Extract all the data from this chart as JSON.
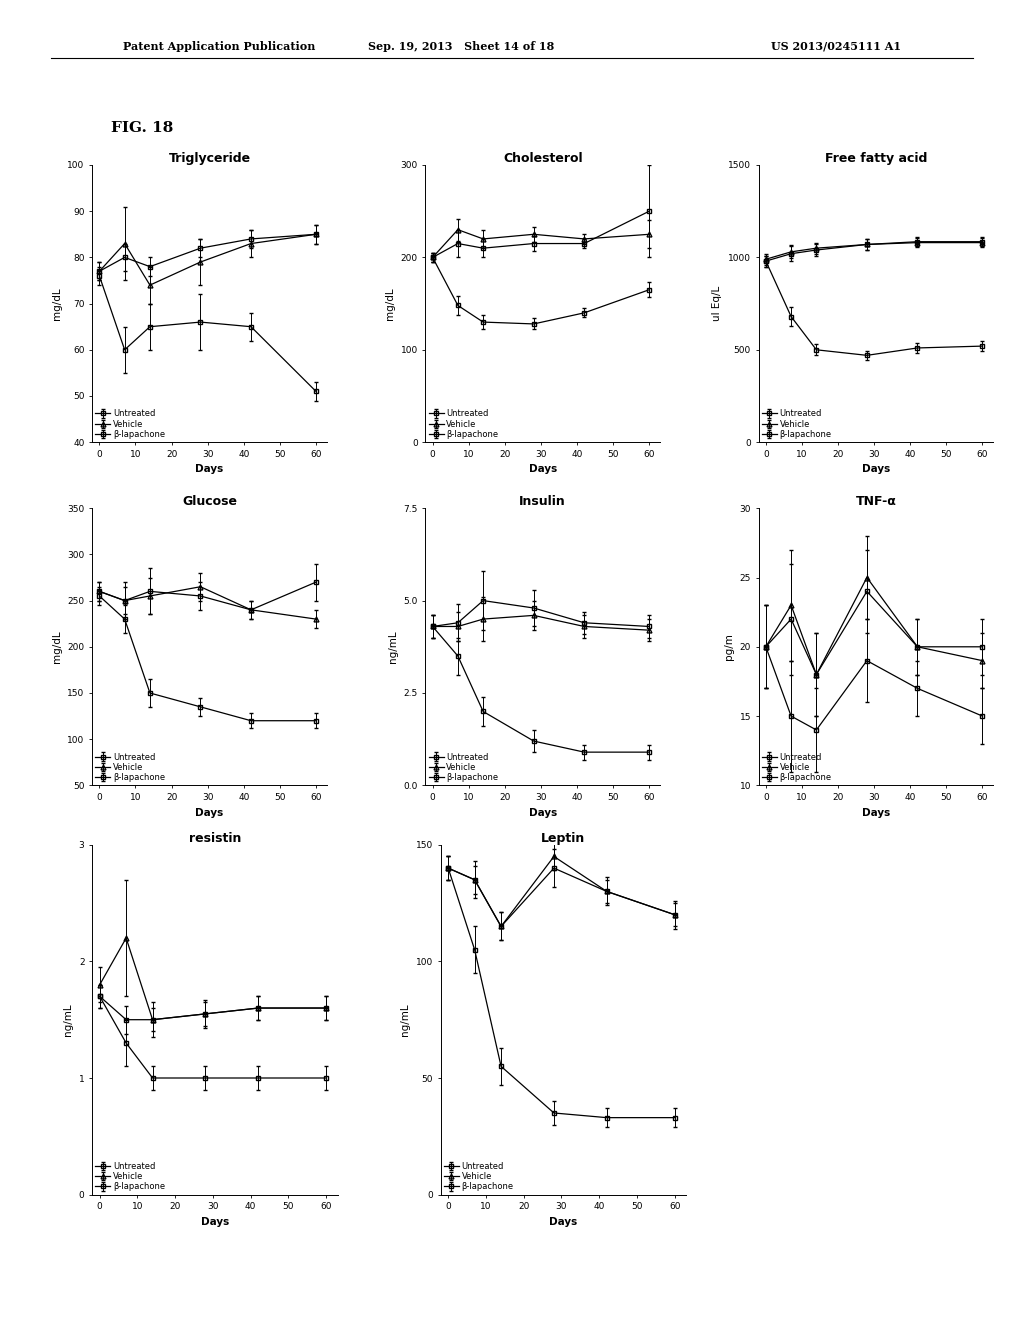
{
  "header_left": "Patent Application Publication",
  "header_mid": "Sep. 19, 2013   Sheet 14 of 18",
  "header_right": "US 2013/0245111 A1",
  "fig_label": "FIG. 18",
  "days": [
    0,
    7,
    14,
    28,
    42,
    60
  ],
  "triglyceride": {
    "title": "Triglyceride",
    "ylabel": "mg/dL",
    "ylim": [
      40,
      100
    ],
    "yticks": [
      40,
      50,
      60,
      70,
      80,
      90,
      100
    ],
    "untreated_y": [
      77,
      80,
      78,
      82,
      84,
      85
    ],
    "untreated_err": [
      2,
      3,
      2,
      2,
      2,
      2
    ],
    "vehicle_y": [
      77,
      83,
      74,
      79,
      83,
      85
    ],
    "vehicle_err": [
      2,
      8,
      4,
      5,
      3,
      2
    ],
    "lapachone_y": [
      76,
      60,
      65,
      66,
      65,
      51
    ],
    "lapachone_err": [
      2,
      5,
      5,
      6,
      3,
      2
    ]
  },
  "cholesterol": {
    "title": "Cholesterol",
    "ylabel": "mg/dL",
    "ylim": [
      0,
      300
    ],
    "yticks": [
      0,
      100,
      200,
      300
    ],
    "untreated_y": [
      200,
      215,
      210,
      215,
      215,
      250
    ],
    "untreated_err": [
      5,
      15,
      10,
      8,
      5,
      50
    ],
    "vehicle_y": [
      200,
      230,
      220,
      225,
      220,
      225
    ],
    "vehicle_err": [
      5,
      12,
      10,
      8,
      5,
      15
    ],
    "lapachone_y": [
      200,
      148,
      130,
      128,
      140,
      165
    ],
    "lapachone_err": [
      5,
      10,
      8,
      6,
      5,
      8
    ]
  },
  "ffa": {
    "title": "Free fatty acid",
    "ylabel": "uI Eq/L",
    "ylim": [
      0,
      1500
    ],
    "yticks": [
      0,
      500,
      1000,
      1500
    ],
    "untreated_y": [
      980,
      1020,
      1040,
      1070,
      1085,
      1085
    ],
    "untreated_err": [
      30,
      40,
      30,
      30,
      25,
      25
    ],
    "vehicle_y": [
      990,
      1030,
      1050,
      1070,
      1080,
      1080
    ],
    "vehicle_err": [
      30,
      35,
      30,
      28,
      25,
      25
    ],
    "lapachone_y": [
      980,
      680,
      500,
      470,
      510,
      520
    ],
    "lapachone_err": [
      30,
      50,
      30,
      25,
      25,
      25
    ]
  },
  "glucose": {
    "title": "Glucose",
    "ylabel": "mg/dL",
    "ylim": [
      50,
      350
    ],
    "yticks": [
      50,
      100,
      150,
      200,
      250,
      300,
      350
    ],
    "untreated_y": [
      260,
      250,
      260,
      255,
      240,
      270
    ],
    "untreated_err": [
      10,
      20,
      25,
      15,
      10,
      20
    ],
    "vehicle_y": [
      260,
      250,
      255,
      265,
      240,
      230
    ],
    "vehicle_err": [
      10,
      15,
      20,
      15,
      10,
      10
    ],
    "lapachone_y": [
      255,
      230,
      150,
      135,
      120,
      120
    ],
    "lapachone_err": [
      10,
      15,
      15,
      10,
      8,
      8
    ]
  },
  "insulin": {
    "title": "Insulin",
    "ylabel": "ng/mL",
    "ylim": [
      0.0,
      7.5
    ],
    "yticks": [
      0.0,
      2.5,
      5.0,
      7.5
    ],
    "untreated_y": [
      4.3,
      4.4,
      5.0,
      4.8,
      4.4,
      4.3
    ],
    "untreated_err": [
      0.3,
      0.5,
      0.8,
      0.5,
      0.3,
      0.3
    ],
    "vehicle_y": [
      4.3,
      4.3,
      4.5,
      4.6,
      4.3,
      4.2
    ],
    "vehicle_err": [
      0.3,
      0.4,
      0.6,
      0.4,
      0.3,
      0.3
    ],
    "lapachone_y": [
      4.3,
      3.5,
      2.0,
      1.2,
      0.9,
      0.9
    ],
    "lapachone_err": [
      0.3,
      0.5,
      0.4,
      0.3,
      0.2,
      0.2
    ]
  },
  "tnf": {
    "title": "TNF-α",
    "ylabel": "pg/m",
    "ylim": [
      10,
      30
    ],
    "yticks": [
      10,
      15,
      20,
      25,
      30
    ],
    "untreated_y": [
      20,
      22,
      18,
      24,
      20,
      20
    ],
    "untreated_err": [
      3,
      4,
      3,
      3,
      2,
      2
    ],
    "vehicle_y": [
      20,
      23,
      18,
      25,
      20,
      19
    ],
    "vehicle_err": [
      3,
      4,
      3,
      3,
      2,
      2
    ],
    "lapachone_y": [
      20,
      15,
      14,
      19,
      17,
      15
    ],
    "lapachone_err": [
      3,
      4,
      3,
      3,
      2,
      2
    ]
  },
  "resistin": {
    "title": "resistin",
    "ylabel": "ng/mL",
    "ylim": [
      0,
      3
    ],
    "yticks": [
      0,
      1,
      2,
      3
    ],
    "untreated_y": [
      1.7,
      1.5,
      1.5,
      1.55,
      1.6,
      1.6
    ],
    "untreated_err": [
      0.1,
      0.12,
      0.1,
      0.1,
      0.1,
      0.1
    ],
    "vehicle_y": [
      1.8,
      2.2,
      1.5,
      1.55,
      1.6,
      1.6
    ],
    "vehicle_err": [
      0.15,
      0.5,
      0.15,
      0.12,
      0.1,
      0.1
    ],
    "lapachone_y": [
      1.7,
      1.3,
      1.0,
      1.0,
      1.0,
      1.0
    ],
    "lapachone_err": [
      0.1,
      0.2,
      0.1,
      0.1,
      0.1,
      0.1
    ]
  },
  "leptin": {
    "title": "Leptin",
    "ylabel": "ng/mL",
    "ylim": [
      0,
      150
    ],
    "yticks": [
      0,
      50,
      100,
      150
    ],
    "untreated_y": [
      140,
      135,
      115,
      140,
      130,
      120
    ],
    "untreated_err": [
      5,
      8,
      6,
      8,
      6,
      6
    ],
    "vehicle_y": [
      140,
      135,
      115,
      145,
      130,
      120
    ],
    "vehicle_err": [
      5,
      6,
      6,
      6,
      5,
      5
    ],
    "lapachone_y": [
      140,
      105,
      55,
      35,
      33,
      33
    ],
    "lapachone_err": [
      5,
      10,
      8,
      5,
      4,
      4
    ]
  },
  "legend_labels": [
    "Untreated",
    "Vehicle",
    "β-lapachone"
  ],
  "xlabel": "Days",
  "xticks": [
    0,
    10,
    20,
    30,
    40,
    50,
    60
  ],
  "background_color": "#ffffff",
  "fontsize_title": 9,
  "fontsize_label": 7.5,
  "fontsize_tick": 6.5,
  "fontsize_legend": 6,
  "fontsize_header": 8,
  "fontsize_fig_label": 10
}
